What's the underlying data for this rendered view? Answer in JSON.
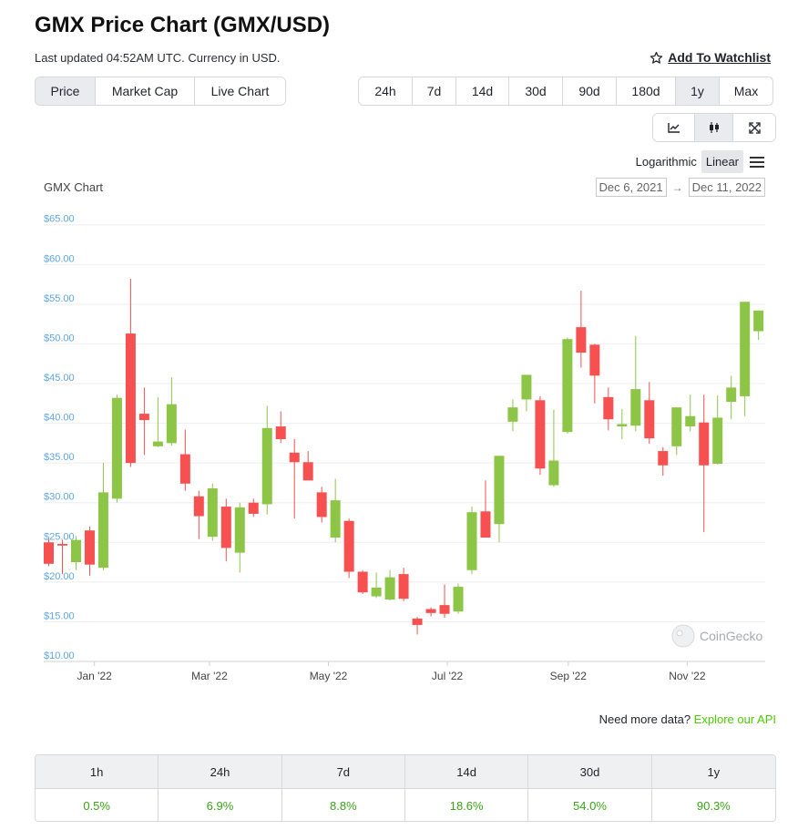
{
  "header": {
    "title": "GMX Price Chart (GMX/USD)",
    "subtitle": "Last updated 04:52AM UTC. Currency in USD.",
    "watchlist_label": "Add To Watchlist"
  },
  "view_tabs": [
    {
      "label": "Price",
      "active": true
    },
    {
      "label": "Market Cap",
      "active": false
    },
    {
      "label": "Live Chart",
      "active": false
    }
  ],
  "ranges": [
    {
      "label": "24h",
      "active": false
    },
    {
      "label": "7d",
      "active": false
    },
    {
      "label": "14d",
      "active": false
    },
    {
      "label": "30d",
      "active": false
    },
    {
      "label": "90d",
      "active": false
    },
    {
      "label": "180d",
      "active": false
    },
    {
      "label": "1y",
      "active": true
    },
    {
      "label": "Max",
      "active": false
    }
  ],
  "chart_type_icons": [
    "line-chart-icon",
    "candlestick-icon",
    "fullscreen-icon"
  ],
  "scale": {
    "log_label": "Logarithmic",
    "linear_label": "Linear",
    "active": "Linear"
  },
  "chart_label": "GMX Chart",
  "date_range": {
    "from": "Dec 6, 2021",
    "to": "Dec 11, 2022"
  },
  "watermark": "CoinGecko",
  "colors": {
    "up": "#8dc647",
    "down": "#f65050",
    "axis_label": "#5fa6e2",
    "link": "#4bcc00",
    "positive": "#3aa319"
  },
  "chart_data": {
    "type": "candlestick",
    "title": "GMX Chart",
    "y_tick_labels": [
      "$10.00",
      "$15.00",
      "$20.00",
      "$25.00",
      "$30.00",
      "$35.00",
      "$40.00",
      "$45.00",
      "$50.00",
      "$55.00",
      "$60.00",
      "$65.00"
    ],
    "y_ticks": [
      10,
      15,
      20,
      25,
      30,
      35,
      40,
      45,
      50,
      55,
      60,
      65
    ],
    "ylim": [
      10,
      66
    ],
    "x_tick_labels": [
      "Jan '22",
      "Mar '22",
      "May '22",
      "Jul '22",
      "Sep '22",
      "Nov '22"
    ],
    "x_ticks": [
      "2022-01-01",
      "2022-03-01",
      "2022-05-01",
      "2022-07-01",
      "2022-09-01",
      "2022-11-01"
    ],
    "xlim": [
      "2021-12-06",
      "2022-12-11"
    ],
    "grid": true,
    "candles": [
      {
        "date": "2021-12-06",
        "open": 25.0,
        "high": 25.5,
        "low": 22.0,
        "close": 22.3
      },
      {
        "date": "2021-12-13",
        "open": 24.8,
        "high": 25.3,
        "low": 21.0,
        "close": 24.6
      },
      {
        "date": "2021-12-20",
        "open": 22.5,
        "high": 25.8,
        "low": 21.5,
        "close": 25.3
      },
      {
        "date": "2021-12-27",
        "open": 26.5,
        "high": 27.0,
        "low": 20.8,
        "close": 22.2
      },
      {
        "date": "2022-01-03",
        "open": 21.8,
        "high": 35.0,
        "low": 21.5,
        "close": 31.3
      },
      {
        "date": "2022-01-10",
        "open": 30.5,
        "high": 43.6,
        "low": 30.0,
        "close": 43.2
      },
      {
        "date": "2022-01-17",
        "open": 51.3,
        "high": 58.2,
        "low": 34.5,
        "close": 35.0
      },
      {
        "date": "2022-01-24",
        "open": 41.2,
        "high": 44.5,
        "low": 36.0,
        "close": 40.4
      },
      {
        "date": "2022-01-31",
        "open": 37.1,
        "high": 43.3,
        "low": 37.0,
        "close": 37.7
      },
      {
        "date": "2022-02-07",
        "open": 37.5,
        "high": 45.8,
        "low": 37.2,
        "close": 42.4
      },
      {
        "date": "2022-02-14",
        "open": 36.1,
        "high": 39.2,
        "low": 31.5,
        "close": 32.4
      },
      {
        "date": "2022-02-21",
        "open": 30.8,
        "high": 31.5,
        "low": 25.4,
        "close": 28.3
      },
      {
        "date": "2022-02-28",
        "open": 25.7,
        "high": 32.4,
        "low": 25.2,
        "close": 31.8
      },
      {
        "date": "2022-03-07",
        "open": 29.5,
        "high": 30.5,
        "low": 22.6,
        "close": 24.3
      },
      {
        "date": "2022-03-14",
        "open": 23.7,
        "high": 30.0,
        "low": 21.2,
        "close": 29.4
      },
      {
        "date": "2022-03-21",
        "open": 30.0,
        "high": 30.5,
        "low": 28.2,
        "close": 28.6
      },
      {
        "date": "2022-03-28",
        "open": 29.8,
        "high": 42.2,
        "low": 28.5,
        "close": 39.4
      },
      {
        "date": "2022-04-04",
        "open": 39.6,
        "high": 41.5,
        "low": 37.5,
        "close": 38.0
      },
      {
        "date": "2022-04-11",
        "open": 36.3,
        "high": 38.0,
        "low": 28.0,
        "close": 35.1
      },
      {
        "date": "2022-04-18",
        "open": 35.1,
        "high": 36.5,
        "low": 33.0,
        "close": 32.8
      },
      {
        "date": "2022-04-25",
        "open": 31.3,
        "high": 32.0,
        "low": 27.5,
        "close": 28.2
      },
      {
        "date": "2022-05-02",
        "open": 25.6,
        "high": 33.0,
        "low": 25.0,
        "close": 30.3
      },
      {
        "date": "2022-05-09",
        "open": 27.7,
        "high": 28.0,
        "low": 20.5,
        "close": 21.3
      },
      {
        "date": "2022-05-16",
        "open": 21.3,
        "high": 21.5,
        "low": 18.5,
        "close": 18.7
      },
      {
        "date": "2022-05-23",
        "open": 18.2,
        "high": 21.2,
        "low": 18.0,
        "close": 19.3
      },
      {
        "date": "2022-05-30",
        "open": 17.8,
        "high": 21.5,
        "low": 17.7,
        "close": 20.6
      },
      {
        "date": "2022-06-06",
        "open": 21.0,
        "high": 21.8,
        "low": 17.6,
        "close": 17.9
      },
      {
        "date": "2022-06-13",
        "open": 15.4,
        "high": 15.6,
        "low": 13.4,
        "close": 14.6
      },
      {
        "date": "2022-06-20",
        "open": 16.6,
        "high": 16.8,
        "low": 15.7,
        "close": 16.1
      },
      {
        "date": "2022-06-27",
        "open": 17.1,
        "high": 19.7,
        "low": 15.5,
        "close": 16.0
      },
      {
        "date": "2022-07-04",
        "open": 16.3,
        "high": 19.8,
        "low": 16.0,
        "close": 19.4
      },
      {
        "date": "2022-07-11",
        "open": 21.5,
        "high": 29.5,
        "low": 21.0,
        "close": 28.8
      },
      {
        "date": "2022-07-18",
        "open": 28.9,
        "high": 32.8,
        "low": 25.6,
        "close": 25.6
      },
      {
        "date": "2022-07-25",
        "open": 27.3,
        "high": 35.8,
        "low": 25.0,
        "close": 35.9
      },
      {
        "date": "2022-08-01",
        "open": 40.2,
        "high": 43.0,
        "low": 39.0,
        "close": 42.0
      },
      {
        "date": "2022-08-08",
        "open": 43.0,
        "high": 46.0,
        "low": 41.5,
        "close": 46.1
      },
      {
        "date": "2022-08-15",
        "open": 42.9,
        "high": 43.4,
        "low": 33.5,
        "close": 34.3
      },
      {
        "date": "2022-08-22",
        "open": 32.2,
        "high": 41.7,
        "low": 32.0,
        "close": 35.3
      },
      {
        "date": "2022-08-29",
        "open": 38.9,
        "high": 50.8,
        "low": 38.7,
        "close": 50.6
      },
      {
        "date": "2022-09-05",
        "open": 52.1,
        "high": 56.7,
        "low": 47.0,
        "close": 48.9
      },
      {
        "date": "2022-09-12",
        "open": 49.9,
        "high": 50.0,
        "low": 42.5,
        "close": 46.0
      },
      {
        "date": "2022-09-19",
        "open": 43.3,
        "high": 44.5,
        "low": 39.1,
        "close": 40.5
      },
      {
        "date": "2022-09-26",
        "open": 39.6,
        "high": 41.8,
        "low": 38.0,
        "close": 39.9
      },
      {
        "date": "2022-10-03",
        "open": 39.7,
        "high": 51.0,
        "low": 39.0,
        "close": 44.3
      },
      {
        "date": "2022-10-10",
        "open": 42.9,
        "high": 45.2,
        "low": 37.4,
        "close": 38.1
      },
      {
        "date": "2022-10-17",
        "open": 36.5,
        "high": 37.0,
        "low": 33.4,
        "close": 34.7
      },
      {
        "date": "2022-10-24",
        "open": 37.1,
        "high": 42.0,
        "low": 36.0,
        "close": 42.0
      },
      {
        "date": "2022-10-31",
        "open": 39.6,
        "high": 43.6,
        "low": 39.0,
        "close": 40.9
      },
      {
        "date": "2022-11-07",
        "open": 40.1,
        "high": 43.6,
        "low": 26.3,
        "close": 34.7
      },
      {
        "date": "2022-11-14",
        "open": 34.9,
        "high": 43.5,
        "low": 34.8,
        "close": 40.7
      },
      {
        "date": "2022-11-21",
        "open": 42.7,
        "high": 46.0,
        "low": 40.5,
        "close": 44.5
      },
      {
        "date": "2022-11-28",
        "open": 43.4,
        "high": 55.3,
        "low": 40.9,
        "close": 55.3
      },
      {
        "date": "2022-12-05",
        "open": 51.6,
        "high": 54.2,
        "low": 50.5,
        "close": 54.2
      }
    ]
  },
  "more_data": {
    "text": "Need more data?",
    "link": "Explore our API"
  },
  "price_change": [
    {
      "period": "1h",
      "value": "0.5%"
    },
    {
      "period": "24h",
      "value": "6.9%"
    },
    {
      "period": "7d",
      "value": "8.8%"
    },
    {
      "period": "14d",
      "value": "18.6%"
    },
    {
      "period": "30d",
      "value": "54.0%"
    },
    {
      "period": "1y",
      "value": "90.3%"
    }
  ]
}
